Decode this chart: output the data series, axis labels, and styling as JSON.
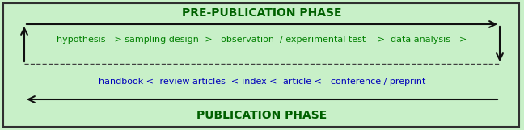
{
  "bg_color": "#c8f0c8",
  "border_color": "#303030",
  "title_pre": "PRE-PUBLICATION PHASE",
  "title_pub": "PUBLICATION PHASE",
  "title_color": "#006000",
  "pre_text": "hypothesis  -> sampling design ->   observation  / experimental test   ->  data analysis  ->",
  "pub_text": "handbook <- review articles  <-index <- article <-  conference / preprint",
  "text_color_pre": "#008000",
  "text_color_pub": "#0000bb",
  "arrow_color": "#101010",
  "dashed_color": "#404040",
  "fig_width": 6.48,
  "fig_height": 1.61,
  "dpi": 100
}
